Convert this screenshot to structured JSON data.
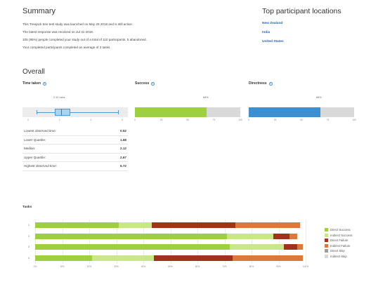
{
  "summary": {
    "title": "Summary",
    "lines": [
      "This Treejack tree test study was launched on May 29 2018 and is still active.",
      "The latest response was received on Jul 31 2018.",
      "105 (95%) people completed your study out of a total of 110 participants. 5 abandoned.",
      "Your completed participants completed an average of 3 tasks."
    ]
  },
  "locations": {
    "title": "Top participant locations",
    "items": [
      "New Zealand",
      "India",
      "United States"
    ]
  },
  "overall": {
    "title": "Overall",
    "time_taken": {
      "label": "Time taken",
      "median_label": "2.12 mins",
      "ticks": [
        "0",
        "2",
        "4",
        "6"
      ],
      "axis_max": 6,
      "min": 0.52,
      "q1": 1.68,
      "median": 2.12,
      "q3": 2.67,
      "max": 5.72
    },
    "success": {
      "label": "Success",
      "pct_label": "68%",
      "value": 68,
      "ticks": [
        "0",
        "25",
        "50",
        "75",
        "100"
      ]
    },
    "directness": {
      "label": "Directness",
      "pct_label": "68%",
      "value": 68,
      "ticks": [
        "0",
        "25",
        "50",
        "75",
        "100"
      ]
    },
    "stats": [
      {
        "label": "Lowest observed time:",
        "value": "0.52"
      },
      {
        "label": "Lower Quartile:",
        "value": "1.68"
      },
      {
        "label": "Median:",
        "value": "2.12"
      },
      {
        "label": "Upper Quartile:",
        "value": "2.67"
      },
      {
        "label": "Highest observed time:",
        "value": "5.72"
      }
    ]
  },
  "tasks": {
    "title": "Tasks",
    "row_labels": [
      "1",
      "2",
      "3",
      "4"
    ],
    "x_ticks": [
      "0%",
      "10%",
      "20%",
      "30%",
      "40%",
      "50%",
      "60%",
      "70%",
      "80%",
      "90%",
      "100%"
    ],
    "rows": [
      [
        31,
        12,
        31,
        24,
        0,
        0
      ],
      [
        71,
        17,
        6,
        3,
        0,
        0
      ],
      [
        72,
        20,
        5,
        2,
        0,
        0
      ],
      [
        21,
        23,
        29,
        26,
        0,
        0
      ]
    ],
    "legend": [
      {
        "name": "Direct Success",
        "color": "#9dcf3e"
      },
      {
        "name": "Indirect Success",
        "color": "#c9e68a"
      },
      {
        "name": "Direct Failure",
        "color": "#a1321e"
      },
      {
        "name": "Indirect Failure",
        "color": "#d97a3c"
      },
      {
        "name": "Direct Skip",
        "color": "#9e9e9e"
      },
      {
        "name": "Indirect Skip",
        "color": "#d9d9d9"
      }
    ]
  }
}
